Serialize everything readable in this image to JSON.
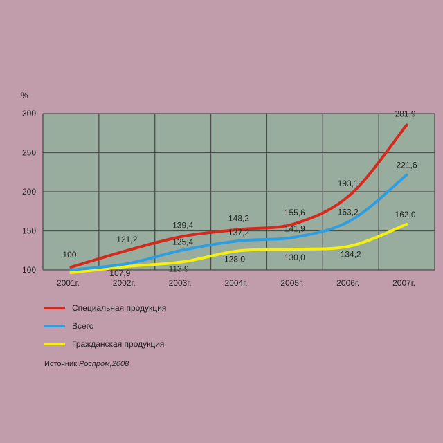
{
  "chart_data": {
    "type": "line",
    "ylabel": "%",
    "categories": [
      "2001г.",
      "2002г.",
      "2003г.",
      "2004г.",
      "2005г.",
      "2006г.",
      "2007г."
    ],
    "ylim": [
      100,
      300
    ],
    "yticks": [
      100,
      150,
      200,
      250,
      300
    ],
    "grid": true,
    "legend_position": "bottom-left",
    "series": [
      {
        "name": "Специальная продукция",
        "color": "#d42a1e",
        "values": [
          100,
          121.2,
          139.4,
          148.2,
          155.6,
          193.1,
          281.9
        ],
        "labels": [
          "100",
          "121,2",
          "139,4",
          "148,2",
          "155,6",
          "193,1",
          "281,9"
        ]
      },
      {
        "name": "Всего",
        "color": "#2f9ee0",
        "values": [
          100,
          107.9,
          125.4,
          137.2,
          141.9,
          163.2,
          221.6
        ],
        "labels": [
          "",
          "",
          "125,4",
          "137,2",
          "141,9",
          "163,2",
          "221,6"
        ]
      },
      {
        "name": "Гражданская продукция",
        "color": "#f7ef12",
        "values": [
          100,
          107.9,
          113.9,
          128.0,
          130.0,
          134.2,
          162.0
        ],
        "labels": [
          "",
          "107,9",
          "113,9",
          "128,0",
          "130,0",
          "134,2",
          "162,0"
        ]
      }
    ]
  },
  "source": {
    "label": "Источник:",
    "value": "Роспром,2008"
  }
}
